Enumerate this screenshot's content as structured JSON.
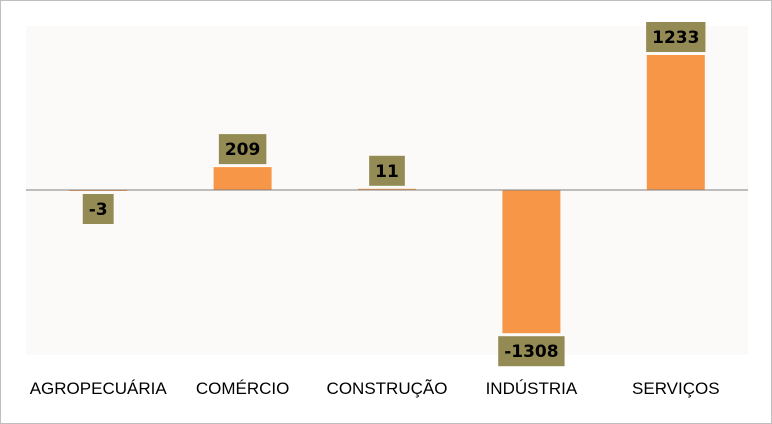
{
  "chart_data": {
    "type": "bar",
    "categories": [
      "AGROPECUÁRIA",
      "COMÉRCIO",
      "CONSTRUÇÃO",
      "INDÚSTRIA",
      "SERVIÇOS"
    ],
    "values": [
      -3,
      209,
      11,
      -1308,
      1233
    ],
    "data_labels": [
      "-3",
      "209",
      "11",
      "-1308",
      "1233"
    ],
    "title": "",
    "xlabel": "",
    "ylabel": "",
    "ylim": [
      -1505,
      1505
    ],
    "grid": false,
    "legend": "none",
    "colors": {
      "bar": "#F79646",
      "label_box": "#948A54",
      "plot_background": "#FBFAF9",
      "axis_line": "#808080"
    }
  }
}
